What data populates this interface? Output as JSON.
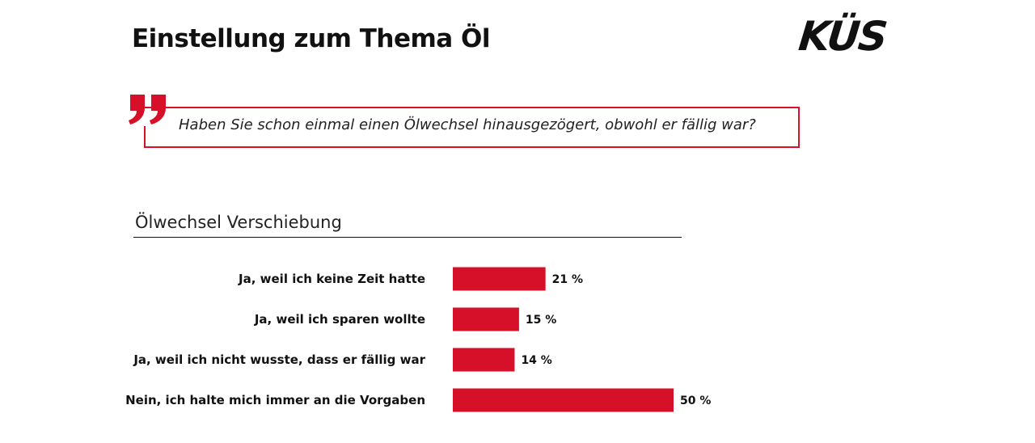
{
  "header": {
    "title": "Einstellung zum Thema Öl",
    "logo_text": "KÜS"
  },
  "question": {
    "text": "Haben Sie schon einmal einen Ölwechsel hinausgezögert, obwohl er fällig war?"
  },
  "colors": {
    "accent": "#d7102a",
    "text": "#111111"
  },
  "icons": {
    "quote": "quote-icon"
  },
  "chart_data": {
    "type": "bar",
    "orientation": "horizontal",
    "title": "Ölwechsel Verschiebung",
    "categories": [
      "Ja, weil ich keine Zeit hatte",
      "Ja, weil ich sparen wollte",
      "Ja, weil ich nicht wusste, dass er fällig war",
      "Nein, ich halte mich immer an die Vorgaben"
    ],
    "values": [
      21,
      15,
      14,
      50
    ],
    "value_labels": [
      "21 %",
      "15 %",
      "14 %",
      "50 %"
    ],
    "unit": "%",
    "xlim": [
      0,
      100
    ],
    "grid": false,
    "legend": "none",
    "bar_color": "#d7102a"
  }
}
